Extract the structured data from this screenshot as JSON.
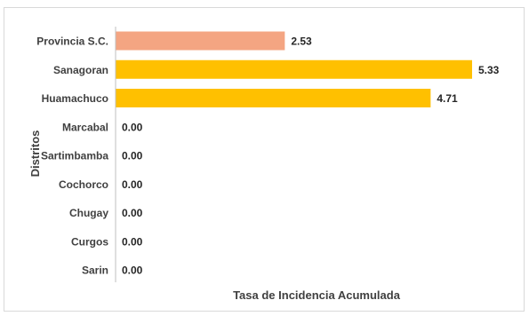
{
  "chart_data": {
    "type": "bar",
    "orientation": "horizontal",
    "categories": [
      "Provincia S.C.",
      "Sanagoran",
      "Huamachuco",
      "Marcabal",
      "Sartimbamba",
      "Cochorco",
      "Chugay",
      "Curgos",
      "Sarin"
    ],
    "values": [
      2.53,
      5.33,
      4.71,
      0.0,
      0.0,
      0.0,
      0.0,
      0.0,
      0.0
    ],
    "value_labels": [
      "2.53",
      "5.33",
      "4.71",
      "0.00",
      "0.00",
      "0.00",
      "0.00",
      "0.00",
      "0.00"
    ],
    "bar_colors": [
      "#f4a582",
      "#ffc000",
      "#ffc000",
      "#ffc000",
      "#ffc000",
      "#ffc000",
      "#ffc000",
      "#ffc000",
      "#ffc000"
    ],
    "title": "",
    "xlabel": "Tasa de Incidencia Acumulada",
    "ylabel": "Distritos",
    "xlim": [
      0,
      5.33
    ],
    "grid": false,
    "legend": "none"
  }
}
